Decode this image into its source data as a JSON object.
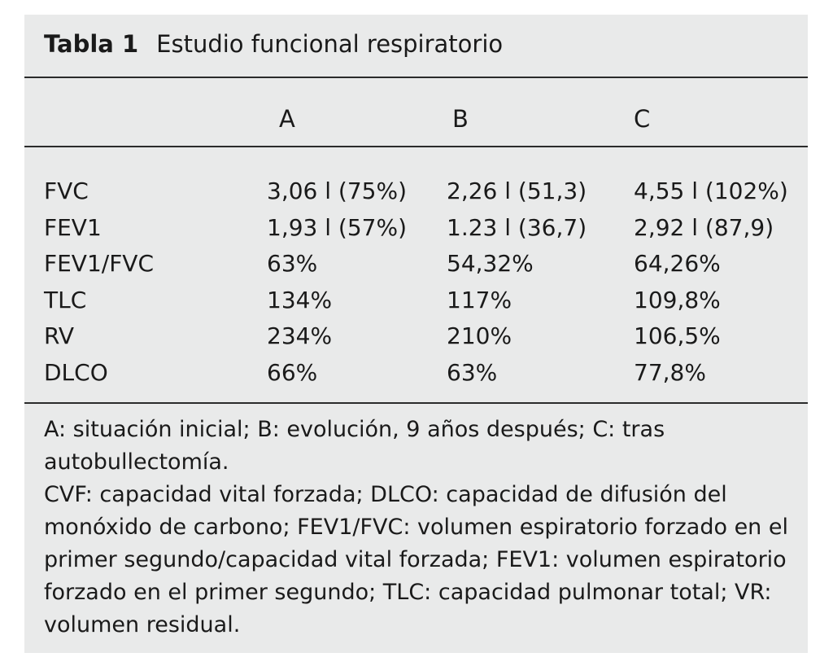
{
  "table": {
    "label": "Tabla 1",
    "title": "Estudio funcional respiratorio",
    "columns": [
      "A",
      "B",
      "C"
    ],
    "rows": [
      {
        "name": "FVC",
        "a": "3,06 l (75%)",
        "b": "2,26 l (51,3)",
        "c": "4,55 l (102%)"
      },
      {
        "name": "FEV1",
        "a": "1,93 l (57%)",
        "b": "1.23 l (36,7)",
        "c": "2,92 l (87,9)"
      },
      {
        "name": "FEV1/FVC",
        "a": "63%",
        "b": "54,32%",
        "c": "64,26%"
      },
      {
        "name": "TLC",
        "a": "134%",
        "b": "117%",
        "c": "109,8%"
      },
      {
        "name": "RV",
        "a": "234%",
        "b": "210%",
        "c": "106,5%"
      },
      {
        "name": "DLCO",
        "a": "66%",
        "b": "63%",
        "c": "77,8%"
      }
    ],
    "notes": [
      "A: situación inicial; B: evolución, 9 años después; C: tras autobullectomía.",
      "CVF: capacidad vital forzada; DLCO: capacidad de difusión del monóxido de carbono; FEV1/FVC: volumen espiratorio forzado en el primer segundo/capacidad vital forzada; FEV1: volumen espiratorio forzado en el primer segundo; TLC: capacidad pulmonar total; VR: volumen residual."
    ]
  }
}
